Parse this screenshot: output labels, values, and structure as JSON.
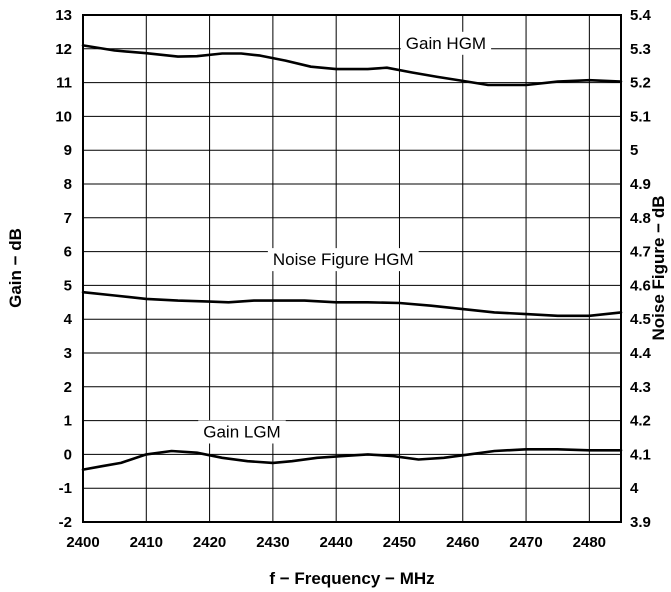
{
  "chart_data": {
    "type": "line",
    "xlabel": "f − Frequency − MHz",
    "ylabel": "Gain − dB",
    "y2label": "Noise Figure − dB",
    "xlim": [
      2400,
      2485
    ],
    "ylim": [
      -2,
      13
    ],
    "y2lim": [
      3.9,
      5.4
    ],
    "grid": true,
    "x_ticks": [
      "2400",
      "2410",
      "2420",
      "2430",
      "2440",
      "2450",
      "2460",
      "2470",
      "2480"
    ],
    "y_ticks": [
      "-2",
      "-1",
      "0",
      "1",
      "2",
      "3",
      "4",
      "5",
      "6",
      "7",
      "8",
      "9",
      "10",
      "11",
      "12",
      "13"
    ],
    "y2_ticks": [
      "3.9",
      "4",
      "4.1",
      "4.2",
      "4.3",
      "4.4",
      "4.5",
      "4.6",
      "4.7",
      "4.8",
      "4.9",
      "5",
      "5.1",
      "5.2",
      "5.3",
      "5.4"
    ],
    "series": [
      {
        "name": "Gain HGM",
        "axis": "left",
        "x": [
          2400,
          2405,
          2410,
          2415,
          2418,
          2422,
          2425,
          2428,
          2432,
          2436,
          2440,
          2445,
          2448,
          2452,
          2456,
          2460,
          2464,
          2470,
          2475,
          2480,
          2485
        ],
        "y": [
          12.1,
          11.95,
          11.87,
          11.77,
          11.78,
          11.86,
          11.86,
          11.8,
          11.65,
          11.47,
          11.4,
          11.4,
          11.44,
          11.3,
          11.17,
          11.05,
          10.93,
          10.93,
          11.03,
          11.07,
          11.03
        ]
      },
      {
        "name": "Noise Figure HGM",
        "axis": "right",
        "x": [
          2400,
          2405,
          2410,
          2415,
          2420,
          2423,
          2427,
          2430,
          2435,
          2440,
          2445,
          2450,
          2455,
          2460,
          2465,
          2470,
          2475,
          2480,
          2485
        ],
        "y": [
          4.58,
          4.57,
          4.56,
          4.555,
          4.552,
          4.55,
          4.555,
          4.555,
          4.555,
          4.55,
          4.55,
          4.548,
          4.54,
          4.53,
          4.52,
          4.515,
          4.51,
          4.51,
          4.52
        ]
      },
      {
        "name": "Gain LGM",
        "axis": "left",
        "x": [
          2400,
          2403,
          2406,
          2410,
          2414,
          2418,
          2422,
          2426,
          2430,
          2433,
          2437,
          2441,
          2445,
          2449,
          2453,
          2457,
          2461,
          2465,
          2470,
          2475,
          2480,
          2485
        ],
        "y": [
          -0.45,
          -0.35,
          -0.25,
          0.0,
          0.1,
          0.05,
          -0.1,
          -0.2,
          -0.25,
          -0.2,
          -0.1,
          -0.05,
          0.0,
          -0.05,
          -0.15,
          -0.1,
          0.0,
          0.1,
          0.15,
          0.15,
          0.12,
          0.12
        ]
      }
    ],
    "annotations": [
      {
        "text": "Gain HGM",
        "x": 2451,
        "y": 12.0
      },
      {
        "text": "Noise Figure HGM",
        "x": 2430,
        "y": 5.6
      },
      {
        "text": "Gain LGM",
        "x": 2419,
        "y": 0.5
      }
    ]
  }
}
